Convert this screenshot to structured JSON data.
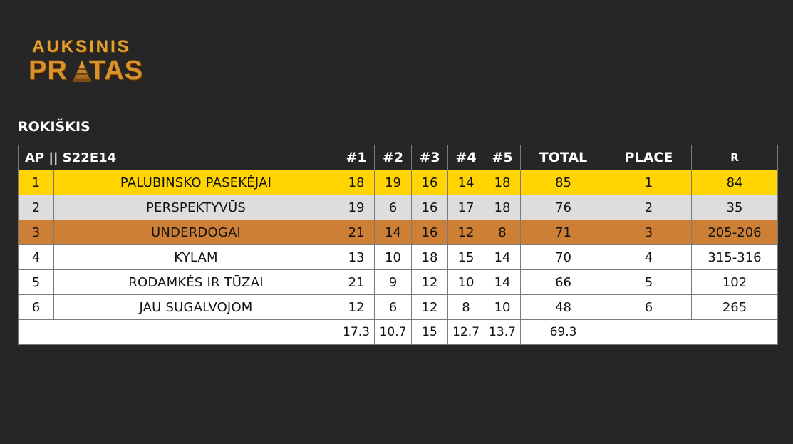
{
  "logo": {
    "line1": "AUKSINIS",
    "line2_part1": "PR",
    "line2_part2": "TAS",
    "accent_color": "#d9922a"
  },
  "location": "ROKIŠKIS",
  "table": {
    "header": {
      "title": "AP || S22E14",
      "rounds": [
        "#1",
        "#2",
        "#3",
        "#4",
        "#5"
      ],
      "total": "TOTAL",
      "place": "PLACE",
      "r": "R"
    },
    "rows": [
      {
        "num": "1",
        "team": "PALUBINSKO PASEKĖJAI",
        "rounds": [
          "18",
          "19",
          "16",
          "14",
          "18"
        ],
        "total": "85",
        "place": "1",
        "r": "84",
        "highlight": "gold"
      },
      {
        "num": "2",
        "team": "PERSPEKTYVŪS",
        "rounds": [
          "19",
          "6",
          "16",
          "17",
          "18"
        ],
        "total": "76",
        "place": "2",
        "r": "35",
        "highlight": "silver"
      },
      {
        "num": "3",
        "team": "UNDERDOGAI",
        "rounds": [
          "21",
          "14",
          "16",
          "12",
          "8"
        ],
        "total": "71",
        "place": "3",
        "r": "205-206",
        "highlight": "bronze"
      },
      {
        "num": "4",
        "team": "KYLAM",
        "rounds": [
          "13",
          "10",
          "18",
          "15",
          "14"
        ],
        "total": "70",
        "place": "4",
        "r": "315-316",
        "highlight": "plain"
      },
      {
        "num": "5",
        "team": "RODAMKĖS IR TŪZAI",
        "rounds": [
          "21",
          "9",
          "12",
          "10",
          "14"
        ],
        "total": "66",
        "place": "5",
        "r": "102",
        "highlight": "plain"
      },
      {
        "num": "6",
        "team": "JAU SUGALVOJOM",
        "rounds": [
          "12",
          "6",
          "12",
          "8",
          "10"
        ],
        "total": "48",
        "place": "6",
        "r": "265",
        "highlight": "plain"
      }
    ],
    "averages": {
      "rounds": [
        "17.3",
        "10.7",
        "15",
        "12.7",
        "13.7"
      ],
      "total": "69.3"
    },
    "colors": {
      "gold": "#ffd400",
      "silver": "#dddddd",
      "bronze": "#cd8035",
      "header_bg": "#262626"
    }
  }
}
